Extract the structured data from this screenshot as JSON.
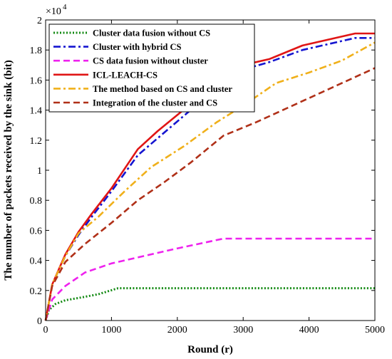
{
  "chart_data": {
    "type": "line",
    "xlabel": "Round (r)",
    "ylabel": "The number of packets received by the sink (bit)",
    "xlim": [
      0,
      5000
    ],
    "ylim": [
      0,
      20000
    ],
    "xticks": [
      0,
      1000,
      2000,
      3000,
      4000,
      5000
    ],
    "yticks": [
      0,
      2000,
      4000,
      6000,
      8000,
      10000,
      12000,
      14000,
      16000,
      18000,
      20000
    ],
    "ytick_labels": [
      "0",
      "0.2",
      "0.4",
      "0.6",
      "0.8",
      "1",
      "1.2",
      "1.4",
      "1.6",
      "1.8",
      "2"
    ],
    "y_multiplier_base": "×10",
    "y_multiplier_exp": "4",
    "grid": false,
    "legend_position": "top-left",
    "series": [
      {
        "name": "Cluster data fusion without CS",
        "color": "#138a13",
        "dash": "dotted",
        "x": [
          0,
          50,
          150,
          300,
          500,
          800,
          1100,
          1500,
          2000,
          3000,
          4000,
          5000
        ],
        "y": [
          0,
          700,
          1100,
          1350,
          1500,
          1750,
          2150,
          2150,
          2150,
          2150,
          2150,
          2150
        ]
      },
      {
        "name": "Cluster with hybrid CS",
        "color": "#1515d0",
        "dash": "dashdot",
        "x": [
          0,
          100,
          300,
          500,
          700,
          1000,
          1400,
          1800,
          2200,
          2600,
          3000,
          3400,
          3900,
          4700,
          5000
        ],
        "y": [
          0,
          2400,
          4300,
          5700,
          6900,
          8600,
          11000,
          12500,
          14000,
          15400,
          16700,
          17200,
          18000,
          18800,
          18800
        ]
      },
      {
        "name": "CS data fusion without cluster",
        "color": "#ee22ee",
        "dash": "dashed",
        "x": [
          0,
          100,
          300,
          600,
          1000,
          1500,
          2000,
          2700,
          3000,
          4000,
          5000
        ],
        "y": [
          0,
          1400,
          2300,
          3200,
          3800,
          4300,
          4800,
          5450,
          5450,
          5450,
          5450
        ]
      },
      {
        "name": "ICL-LEACH-CS",
        "color": "#e01515",
        "dash": "solid",
        "x": [
          0,
          100,
          300,
          500,
          700,
          1000,
          1400,
          1700,
          2200,
          2600,
          3000,
          3400,
          3900,
          4700,
          5000
        ],
        "y": [
          0,
          2400,
          4400,
          5900,
          7100,
          8800,
          11400,
          12600,
          14400,
          15800,
          17000,
          17400,
          18300,
          19100,
          19100
        ]
      },
      {
        "name": "The method based on CS and cluster",
        "color": "#f0b01a",
        "dash": "dashdot",
        "x": [
          0,
          100,
          300,
          500,
          800,
          1200,
          1600,
          2100,
          2600,
          3000,
          3500,
          4000,
          4500,
          5000
        ],
        "y": [
          0,
          2400,
          4300,
          5800,
          6900,
          8600,
          10200,
          11600,
          13200,
          14300,
          15800,
          16500,
          17300,
          18500
        ]
      },
      {
        "name": "Integration of the cluster and CS",
        "color": "#b03018",
        "dash": "dashed",
        "x": [
          0,
          100,
          300,
          600,
          1000,
          1400,
          1800,
          2200,
          2700,
          3200,
          3700,
          4200,
          4700,
          5000
        ],
        "y": [
          0,
          2300,
          3900,
          5100,
          6500,
          8000,
          9200,
          10500,
          12300,
          13200,
          14200,
          15200,
          16200,
          16800
        ]
      }
    ]
  }
}
